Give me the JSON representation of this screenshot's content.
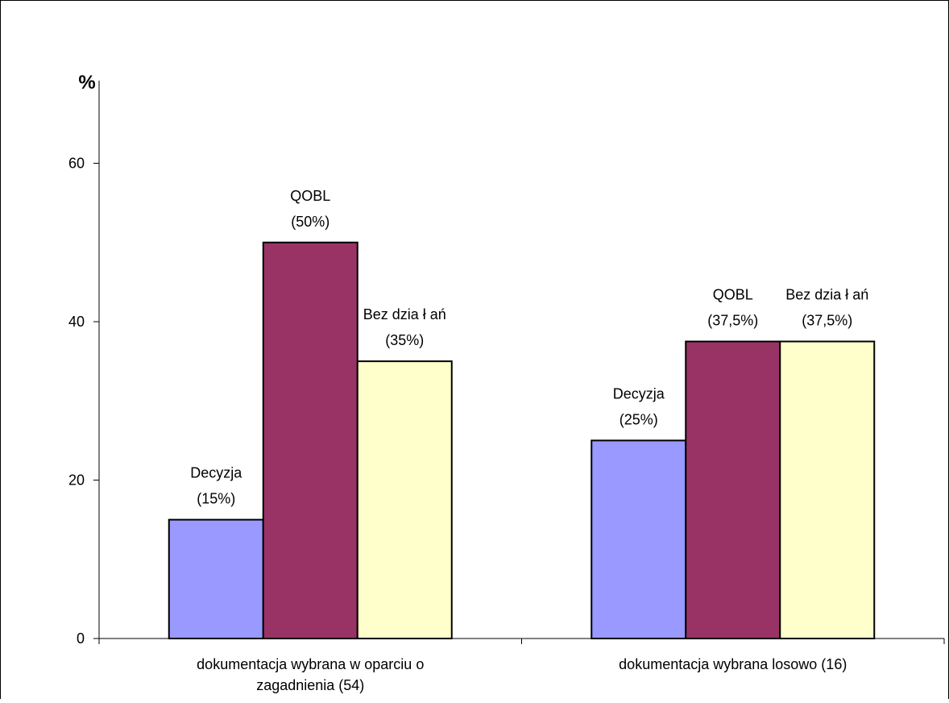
{
  "chart_data": {
    "type": "bar",
    "ylabel": "%",
    "xlabel": "",
    "ylim": [
      0,
      70
    ],
    "yticks": [
      "0",
      "20",
      "40",
      "60"
    ],
    "grid": false,
    "legend": "none",
    "categories": [
      [
        "dokumentacja wybrana w oparciu o",
        "zagadnienia (54)"
      ],
      [
        "dokumentacja wybrana losowo (16)"
      ]
    ],
    "series": [
      {
        "color": "#9999ff",
        "values": [
          15,
          25
        ],
        "labels": [
          [
            "Decyzja",
            "(15%)"
          ],
          [
            "Decyzja",
            "(25%)"
          ]
        ]
      },
      {
        "color": "#993366",
        "values": [
          50,
          37.5
        ],
        "labels": [
          [
            "QOBL",
            "(50%)"
          ],
          [
            "QOBL",
            "(37,5%)"
          ]
        ]
      },
      {
        "color": "#ffffcc",
        "values": [
          35,
          37.5
        ],
        "labels": [
          [
            "Bez dzia ł ań",
            "(35%)"
          ],
          [
            "Bez dzia ł ań",
            "(37,5%)"
          ]
        ]
      }
    ]
  }
}
